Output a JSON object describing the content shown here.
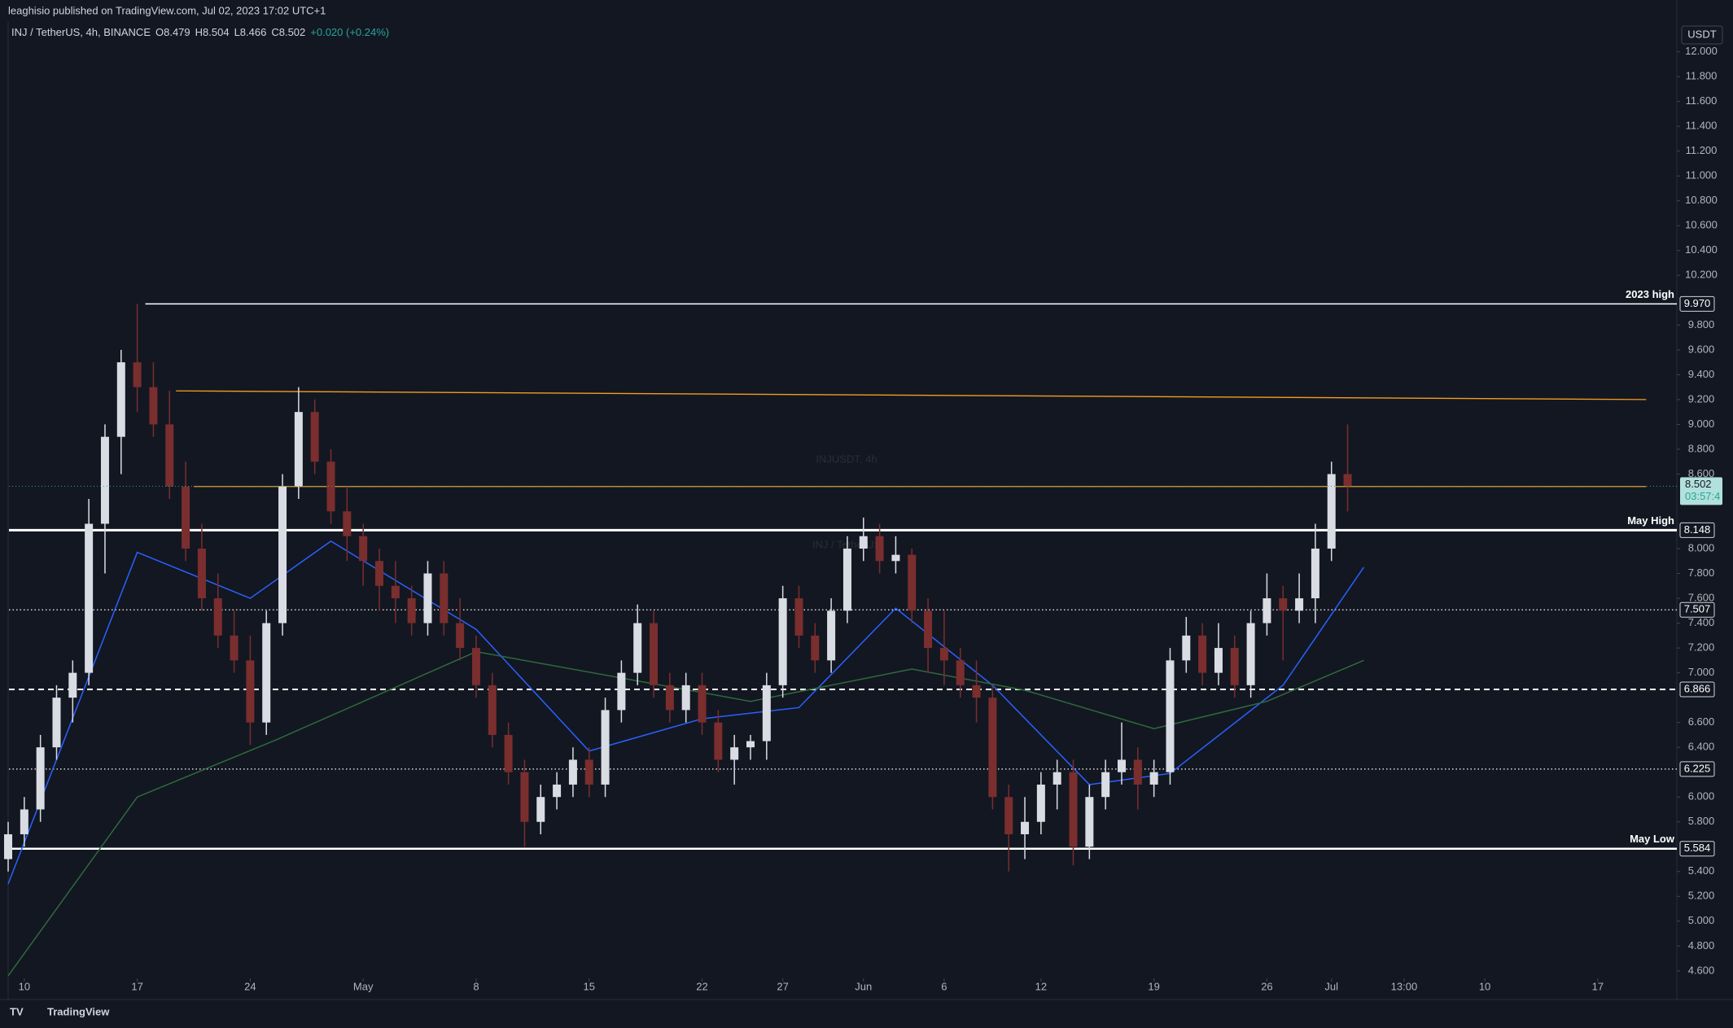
{
  "header": {
    "published": "leaghisio published on TradingView.com, Jul 02, 2023 17:02 UTC+1",
    "footer": "TradingView"
  },
  "chart_data": {
    "type": "candlestick",
    "legend": {
      "symbol": "INJ / TetherUS, 4h, BINANCE",
      "open": "O8.479",
      "high": "H8.504",
      "low": "L8.466",
      "close": "C8.502",
      "change": "+0.020 (+0.24%)"
    },
    "watermark": {
      "title": "INJUSDT, 4h",
      "subtitle": "INJ / TetherUS"
    },
    "currency": "USDT",
    "up_color": "#d9dce3",
    "down_color": "#7a2e2e",
    "xlim": [
      -0.95,
      102.4
    ],
    "ylim": [
      4.54,
      12.24
    ],
    "xticks": [
      {
        "value": 0,
        "label": "10"
      },
      {
        "value": 7,
        "label": "17"
      },
      {
        "value": 14,
        "label": "24"
      },
      {
        "value": 21,
        "label": "May"
      },
      {
        "value": 28,
        "label": "8"
      },
      {
        "value": 35,
        "label": "15"
      },
      {
        "value": 42,
        "label": "22"
      },
      {
        "value": 47,
        "label": "27"
      },
      {
        "value": 52,
        "label": "Jun"
      },
      {
        "value": 57,
        "label": "6"
      },
      {
        "value": 63,
        "label": "12"
      },
      {
        "value": 70,
        "label": "19"
      },
      {
        "value": 77,
        "label": "26"
      },
      {
        "value": 81,
        "label": "Jul"
      },
      {
        "value": 85.5,
        "label": "13:00"
      },
      {
        "value": 90.5,
        "label": "10"
      },
      {
        "value": 97.5,
        "label": "17"
      }
    ],
    "yticks": [
      {
        "value": 4.6,
        "label": "4.600"
      },
      {
        "value": 4.8,
        "label": "4.800"
      },
      {
        "value": 5.0,
        "label": "5.000"
      },
      {
        "value": 5.2,
        "label": "5.200"
      },
      {
        "value": 5.4,
        "label": "5.400"
      },
      {
        "value": 5.8,
        "label": "5.800"
      },
      {
        "value": 6.0,
        "label": "6.000"
      },
      {
        "value": 6.4,
        "label": "6.400"
      },
      {
        "value": 6.6,
        "label": "6.600"
      },
      {
        "value": 7.0,
        "label": "7.000"
      },
      {
        "value": 7.2,
        "label": "7.200"
      },
      {
        "value": 7.4,
        "label": "7.400"
      },
      {
        "value": 7.6,
        "label": "7.600"
      },
      {
        "value": 7.8,
        "label": "7.800"
      },
      {
        "value": 8.0,
        "label": "8.000"
      },
      {
        "value": 8.6,
        "label": "8.600"
      },
      {
        "value": 8.8,
        "label": "8.800"
      },
      {
        "value": 9.0,
        "label": "9.000"
      },
      {
        "value": 9.2,
        "label": "9.200"
      },
      {
        "value": 9.4,
        "label": "9.400"
      },
      {
        "value": 9.6,
        "label": "9.600"
      },
      {
        "value": 9.8,
        "label": "9.800"
      },
      {
        "value": 10.2,
        "label": "10.200"
      },
      {
        "value": 10.4,
        "label": "10.400"
      },
      {
        "value": 10.6,
        "label": "10.600"
      },
      {
        "value": 10.8,
        "label": "10.800"
      },
      {
        "value": 11.0,
        "label": "11.000"
      },
      {
        "value": 11.2,
        "label": "11.200"
      },
      {
        "value": 11.4,
        "label": "11.400"
      },
      {
        "value": 11.6,
        "label": "11.600"
      },
      {
        "value": 11.8,
        "label": "11.800"
      },
      {
        "value": 12.0,
        "label": "12.000"
      }
    ],
    "x": [
      -1,
      0,
      1,
      2,
      3,
      4,
      5,
      6,
      7,
      8,
      9,
      10,
      11,
      12,
      13,
      14,
      15,
      16,
      17,
      18,
      19,
      20,
      21,
      22,
      23,
      24,
      25,
      26,
      27,
      28,
      29,
      30,
      31,
      32,
      33,
      34,
      35,
      36,
      37,
      38,
      39,
      40,
      41,
      42,
      43,
      44,
      45,
      46,
      47,
      48,
      49,
      50,
      51,
      52,
      53,
      54,
      55,
      56,
      57,
      58,
      59,
      60,
      61,
      62,
      63,
      64,
      65,
      66,
      67,
      68,
      69,
      70,
      71,
      72,
      73,
      74,
      75,
      76,
      77,
      78,
      79,
      80,
      81,
      82
    ],
    "candles": [
      [
        5.5,
        5.8,
        5.4,
        5.7
      ],
      [
        5.7,
        6.0,
        5.6,
        5.9
      ],
      [
        5.9,
        6.5,
        5.8,
        6.4
      ],
      [
        6.4,
        6.9,
        6.3,
        6.8
      ],
      [
        6.8,
        7.1,
        6.6,
        7.0
      ],
      [
        7.0,
        8.4,
        6.9,
        8.2
      ],
      [
        8.2,
        9.0,
        7.8,
        8.9
      ],
      [
        8.9,
        9.6,
        8.6,
        9.5
      ],
      [
        9.5,
        9.97,
        9.1,
        9.3
      ],
      [
        9.3,
        9.5,
        8.9,
        9.0
      ],
      [
        9.0,
        9.27,
        8.4,
        8.5
      ],
      [
        8.5,
        8.7,
        7.9,
        8.0
      ],
      [
        8.0,
        8.2,
        7.5,
        7.6
      ],
      [
        7.6,
        7.8,
        7.2,
        7.3
      ],
      [
        7.3,
        7.5,
        7.0,
        7.1
      ],
      [
        7.1,
        7.3,
        6.42,
        6.6
      ],
      [
        6.6,
        7.5,
        6.5,
        7.4
      ],
      [
        7.4,
        8.6,
        7.3,
        8.5
      ],
      [
        8.5,
        9.3,
        8.4,
        9.1
      ],
      [
        9.1,
        9.2,
        8.6,
        8.7
      ],
      [
        8.7,
        8.8,
        8.2,
        8.3
      ],
      [
        8.3,
        8.5,
        7.9,
        8.1
      ],
      [
        8.1,
        8.2,
        7.7,
        7.9
      ],
      [
        7.9,
        8.0,
        7.5,
        7.7
      ],
      [
        7.7,
        7.9,
        7.4,
        7.6
      ],
      [
        7.6,
        7.7,
        7.3,
        7.4
      ],
      [
        7.4,
        7.9,
        7.3,
        7.8
      ],
      [
        7.8,
        7.9,
        7.3,
        7.4
      ],
      [
        7.4,
        7.6,
        7.1,
        7.2
      ],
      [
        7.2,
        7.3,
        6.8,
        6.9
      ],
      [
        6.9,
        7.0,
        6.4,
        6.5
      ],
      [
        6.5,
        6.6,
        6.1,
        6.2
      ],
      [
        6.2,
        6.3,
        5.6,
        5.8
      ],
      [
        5.8,
        6.1,
        5.7,
        6.0
      ],
      [
        6.0,
        6.2,
        5.9,
        6.1
      ],
      [
        6.1,
        6.4,
        6.0,
        6.3
      ],
      [
        6.3,
        6.4,
        6.0,
        6.1
      ],
      [
        6.1,
        6.8,
        6.0,
        6.7
      ],
      [
        6.7,
        7.1,
        6.6,
        7.0
      ],
      [
        7.0,
        7.55,
        6.9,
        7.4
      ],
      [
        7.4,
        7.5,
        6.8,
        6.9
      ],
      [
        6.9,
        7.0,
        6.6,
        6.7
      ],
      [
        6.7,
        7.0,
        6.6,
        6.9
      ],
      [
        6.9,
        7.0,
        6.5,
        6.6
      ],
      [
        6.6,
        6.7,
        6.2,
        6.3
      ],
      [
        6.3,
        6.5,
        6.1,
        6.4
      ],
      [
        6.4,
        6.5,
        6.3,
        6.45
      ],
      [
        6.45,
        7.0,
        6.3,
        6.9
      ],
      [
        6.9,
        7.7,
        6.8,
        7.6
      ],
      [
        7.6,
        7.7,
        7.2,
        7.3
      ],
      [
        7.3,
        7.4,
        7.0,
        7.1
      ],
      [
        7.1,
        7.6,
        7.0,
        7.5
      ],
      [
        7.5,
        8.1,
        7.4,
        8.0
      ],
      [
        8.0,
        8.25,
        7.9,
        8.1
      ],
      [
        8.1,
        8.2,
        7.8,
        7.9
      ],
      [
        7.9,
        8.1,
        7.8,
        7.95
      ],
      [
        7.95,
        8.0,
        7.4,
        7.5
      ],
      [
        7.5,
        7.6,
        7.0,
        7.2
      ],
      [
        7.2,
        7.5,
        6.9,
        7.1
      ],
      [
        7.1,
        7.2,
        6.8,
        6.9
      ],
      [
        6.9,
        7.1,
        6.6,
        6.8
      ],
      [
        6.8,
        6.9,
        5.9,
        6.0
      ],
      [
        6.0,
        6.1,
        5.4,
        5.7
      ],
      [
        5.7,
        6.0,
        5.5,
        5.8
      ],
      [
        5.8,
        6.2,
        5.7,
        6.1
      ],
      [
        6.1,
        6.3,
        5.9,
        6.2
      ],
      [
        6.2,
        6.3,
        5.45,
        5.6
      ],
      [
        5.6,
        6.1,
        5.5,
        6.0
      ],
      [
        6.0,
        6.3,
        5.9,
        6.2
      ],
      [
        6.2,
        6.6,
        6.1,
        6.3
      ],
      [
        6.3,
        6.4,
        5.9,
        6.1
      ],
      [
        6.1,
        6.3,
        6.0,
        6.2
      ],
      [
        6.2,
        7.2,
        6.1,
        7.1
      ],
      [
        7.1,
        7.45,
        7.0,
        7.3
      ],
      [
        7.3,
        7.4,
        6.9,
        7.0
      ],
      [
        7.0,
        7.4,
        6.9,
        7.2
      ],
      [
        7.2,
        7.3,
        6.8,
        6.9
      ],
      [
        6.9,
        7.5,
        6.8,
        7.4
      ],
      [
        7.4,
        7.8,
        7.3,
        7.6
      ],
      [
        7.6,
        7.7,
        7.1,
        7.5
      ],
      [
        7.5,
        7.8,
        7.4,
        7.6
      ],
      [
        7.6,
        8.2,
        7.4,
        8.0
      ],
      [
        8.0,
        8.7,
        7.9,
        8.6
      ],
      [
        8.6,
        9.0,
        8.3,
        8.502
      ]
    ],
    "moving_averages": [
      {
        "color": "#2962ff",
        "x": [
          -1,
          7,
          14,
          19,
          28,
          35,
          42,
          48,
          54,
          60,
          66,
          71,
          78,
          83
        ],
        "values": [
          5.3,
          7.97,
          7.6,
          8.06,
          7.35,
          6.37,
          6.63,
          6.72,
          7.52,
          6.9,
          6.1,
          6.19,
          6.9,
          7.85
        ]
      },
      {
        "color": "#2e6b3a",
        "x": [
          -1,
          7,
          15.6,
          28,
          45,
          55,
          62,
          70,
          77,
          83
        ],
        "values": [
          4.56,
          6.0,
          6.46,
          7.17,
          6.77,
          7.03,
          6.86,
          6.55,
          6.77,
          7.1
        ]
      }
    ],
    "levels": [
      {
        "value": 9.97,
        "label": "9.970",
        "name": "2023 high",
        "from": 7.5,
        "style": "solid",
        "width": 1.5
      },
      {
        "value": 8.148,
        "label": "8.148",
        "name": "May High",
        "from": -0.95,
        "style": "solid",
        "width": 3
      },
      {
        "value": 7.507,
        "label": "7.507",
        "from": -0.95,
        "style": "dotted",
        "width": 1.3
      },
      {
        "value": 6.866,
        "label": "6.866",
        "from": -0.95,
        "style": "dashed",
        "width": 2
      },
      {
        "value": 6.225,
        "label": "6.225",
        "from": -0.95,
        "style": "dotted",
        "width": 1.3
      },
      {
        "value": 5.584,
        "label": "5.584",
        "name": "May Low",
        "from": -0.95,
        "style": "solid",
        "width": 2.5
      }
    ],
    "trendlines": [
      {
        "color": "#f59d1f",
        "x": [
          9.4,
          100.5
        ],
        "values": [
          9.27,
          9.2
        ]
      },
      {
        "color": "#f59d1f",
        "x": [
          10.5,
          100.5
        ],
        "values": [
          8.5,
          8.5
        ]
      }
    ],
    "last_price": {
      "value": 8.502,
      "label": "8.502",
      "countdown": "03:57:4"
    }
  }
}
